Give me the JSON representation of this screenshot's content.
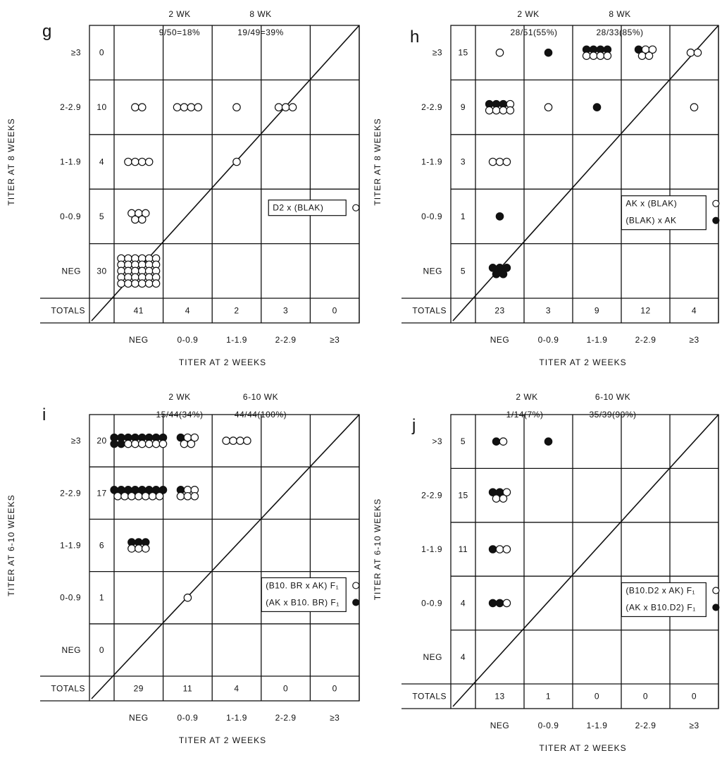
{
  "chart_data": [
    {
      "type": "scatter",
      "panel_letter": "g",
      "header": {
        "wk_a": "2 WK",
        "wk_b": "8 WK",
        "stat_a": "9/50=18%",
        "stat_b": "19/49=39%"
      },
      "xlabel": "TITER AT 2 WEEKS",
      "ylabel": "TITER AT 8 WEEKS",
      "x_categories": [
        "NEG",
        "0-0.9",
        "1-1.9",
        "2-2.9",
        "≥3"
      ],
      "y_categories": [
        "≥3",
        "2-2.9",
        "1-1.9",
        "0-0.9",
        "NEG"
      ],
      "row_totals": [
        "0",
        "10",
        "4",
        "5",
        "30"
      ],
      "totals_label": "TOTALS",
      "col_totals": [
        "41",
        "4",
        "2",
        "3",
        "0"
      ],
      "legend": [
        {
          "label": "D2 x (BLAK)",
          "marker": "open"
        }
      ],
      "legend_position": "center-right",
      "cells": [
        {
          "x": "NEG",
          "y": "2-2.9",
          "open": 2,
          "filled": 0
        },
        {
          "x": "0-0.9",
          "y": "2-2.9",
          "open": 4,
          "filled": 0
        },
        {
          "x": "1-1.9",
          "y": "2-2.9",
          "open": 1,
          "filled": 0
        },
        {
          "x": "2-2.9",
          "y": "2-2.9",
          "open": 3,
          "filled": 0
        },
        {
          "x": "NEG",
          "y": "1-1.9",
          "open": 4,
          "filled": 0
        },
        {
          "x": "1-1.9",
          "y": "1-1.9",
          "open": 1,
          "filled": 0
        },
        {
          "x": "NEG",
          "y": "0-0.9",
          "open": 5,
          "filled": 0
        },
        {
          "x": "NEG",
          "y": "NEG",
          "open": 30,
          "filled": 0
        }
      ]
    },
    {
      "type": "scatter",
      "panel_letter": "h",
      "header": {
        "wk_a": "2 WK",
        "wk_b": "8 WK",
        "stat_a": "28/51(55%)",
        "stat_b": "28/33(85%)"
      },
      "xlabel": "TITER AT 2 WEEKS",
      "ylabel": "TITER AT 8 WEEKS",
      "x_categories": [
        "NEG",
        "0-0.9",
        "1-1.9",
        "2-2.9",
        "≥3"
      ],
      "y_categories": [
        "≥3",
        "2-2.9",
        "1-1.9",
        "0-0.9",
        "NEG"
      ],
      "row_totals": [
        "15",
        "9",
        "3",
        "1",
        "5"
      ],
      "totals_label": "TOTALS",
      "col_totals": [
        "23",
        "3",
        "9",
        "12",
        "4"
      ],
      "legend": [
        {
          "label": "AK x (BLAK)",
          "marker": "open"
        },
        {
          "label": "(BLAK) x AK",
          "marker": "filled"
        }
      ],
      "legend_position": "center-right",
      "cells": [
        {
          "x": "NEG",
          "y": "≥3",
          "open": 1,
          "filled": 0
        },
        {
          "x": "0-0.9",
          "y": "≥3",
          "open": 0,
          "filled": 1
        },
        {
          "x": "1-1.9",
          "y": "≥3",
          "open": 4,
          "filled": 4
        },
        {
          "x": "2-2.9",
          "y": "≥3",
          "open": 4,
          "filled": 1
        },
        {
          "x": "≥3",
          "y": "≥3",
          "open": 2,
          "filled": 0
        },
        {
          "x": "NEG",
          "y": "2-2.9",
          "open": 5,
          "filled": 3
        },
        {
          "x": "0-0.9",
          "y": "2-2.9",
          "open": 1,
          "filled": 0
        },
        {
          "x": "1-1.9",
          "y": "2-2.9",
          "open": 0,
          "filled": 1
        },
        {
          "x": "≥3",
          "y": "2-2.9",
          "open": 1,
          "filled": 0
        },
        {
          "x": "NEG",
          "y": "1-1.9",
          "open": 3,
          "filled": 0
        },
        {
          "x": "NEG",
          "y": "0-0.9",
          "open": 0,
          "filled": 1
        },
        {
          "x": "NEG",
          "y": "NEG",
          "open": 0,
          "filled": 5
        }
      ]
    },
    {
      "type": "scatter",
      "panel_letter": "i",
      "header": {
        "wk_a": "2 WK",
        "wk_b": "6-10 WK",
        "stat_a": "15/44(34%)",
        "stat_b": "44/44(100%)"
      },
      "xlabel": "TITER AT 2 WEEKS",
      "ylabel": "TITER AT 6-10 WEEKS",
      "x_categories": [
        "NEG",
        "0-0.9",
        "1-1.9",
        "2-2.9",
        "≥3"
      ],
      "y_categories": [
        "≥3",
        "2-2.9",
        "1-1.9",
        "0-0.9",
        "NEG"
      ],
      "row_totals": [
        "20",
        "17",
        "6",
        "1",
        "0"
      ],
      "totals_label": "TOTALS",
      "col_totals": [
        "29",
        "11",
        "4",
        "0",
        "0"
      ],
      "legend": [
        {
          "label": "(B10. BR x AK) F₁",
          "marker": "open"
        },
        {
          "label": "(AK x B10. BR) F₁",
          "marker": "filled"
        }
      ],
      "legend_position": "center-right",
      "cells": [
        {
          "x": "NEG",
          "y": "≥3",
          "open": 6,
          "filled": 10
        },
        {
          "x": "0-0.9",
          "y": "≥3",
          "open": 4,
          "filled": 1
        },
        {
          "x": "1-1.9",
          "y": "≥3",
          "open": 4,
          "filled": 0
        },
        {
          "x": "NEG",
          "y": "2-2.9",
          "open": 7,
          "filled": 8
        },
        {
          "x": "0-0.9",
          "y": "2-2.9",
          "open": 5,
          "filled": 1
        },
        {
          "x": "NEG",
          "y": "1-1.9",
          "open": 3,
          "filled": 3
        },
        {
          "x": "0-0.9",
          "y": "0-0.9",
          "open": 1,
          "filled": 0
        }
      ]
    },
    {
      "type": "scatter",
      "panel_letter": "j",
      "header": {
        "wk_a": "2 WK",
        "wk_b": "6-10 WK",
        "stat_a": "1/14(7%)",
        "stat_b": "35/39(90%)"
      },
      "xlabel": "TITER AT 2 WEEKS",
      "ylabel": "TITER AT 6-10 WEEKS",
      "x_categories": [
        "NEG",
        "0-0.9",
        "1-1.9",
        "2-2.9",
        "≥3"
      ],
      "y_categories": [
        ">3",
        "2-2.9",
        "1-1.9",
        "0-0.9",
        "NEG"
      ],
      "row_totals": [
        "5",
        "15",
        "11",
        "4",
        "4"
      ],
      "totals_label": "TOTALS",
      "col_totals": [
        "13",
        "1",
        "0",
        "0",
        "0"
      ],
      "legend": [
        {
          "label": "(B10.D2 x AK) F₁",
          "marker": "open"
        },
        {
          "label": "(AK x B10.D2) F₁",
          "marker": "filled"
        }
      ],
      "legend_position": "center-right",
      "cells": [
        {
          "x": "NEG",
          "y": ">3",
          "open": 1,
          "filled": 1
        },
        {
          "x": "0-0.9",
          "y": ">3",
          "open": 0,
          "filled": 1
        },
        {
          "x": "NEG",
          "y": "2-2.9",
          "open": 3,
          "filled": 2
        },
        {
          "x": "NEG",
          "y": "1-1.9",
          "open": 2,
          "filled": 1
        },
        {
          "x": "NEG",
          "y": "0-0.9",
          "open": 1,
          "filled": 2
        }
      ]
    }
  ]
}
